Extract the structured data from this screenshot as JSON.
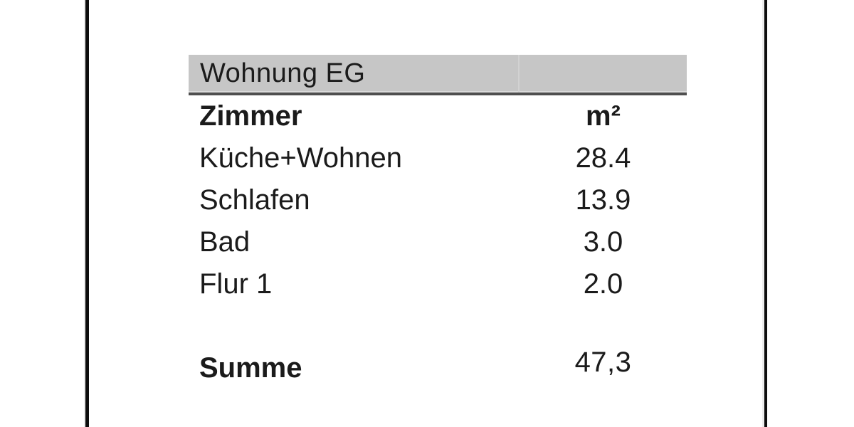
{
  "document": {
    "header": {
      "title": "Wohnung EG"
    },
    "column_headers": {
      "room": "Zimmer",
      "area": "m²"
    },
    "rows": [
      {
        "room": "Küche+Wohnen",
        "area": "28.4"
      },
      {
        "room": "Schlafen",
        "area": "13.9"
      },
      {
        "room": "Bad",
        "area": "3.0"
      },
      {
        "room": "Flur 1",
        "area": "2.0"
      }
    ],
    "summary": {
      "label": "Summe",
      "value": "47,3"
    }
  },
  "colors": {
    "header_bg": "#c6c6c6",
    "header_rule": "#4f4f4f",
    "column_divider": "#d2d2d2",
    "text": "#1b1b1b",
    "page_edge_line": "#0d0d0d",
    "page_bg": "#ffffff"
  }
}
